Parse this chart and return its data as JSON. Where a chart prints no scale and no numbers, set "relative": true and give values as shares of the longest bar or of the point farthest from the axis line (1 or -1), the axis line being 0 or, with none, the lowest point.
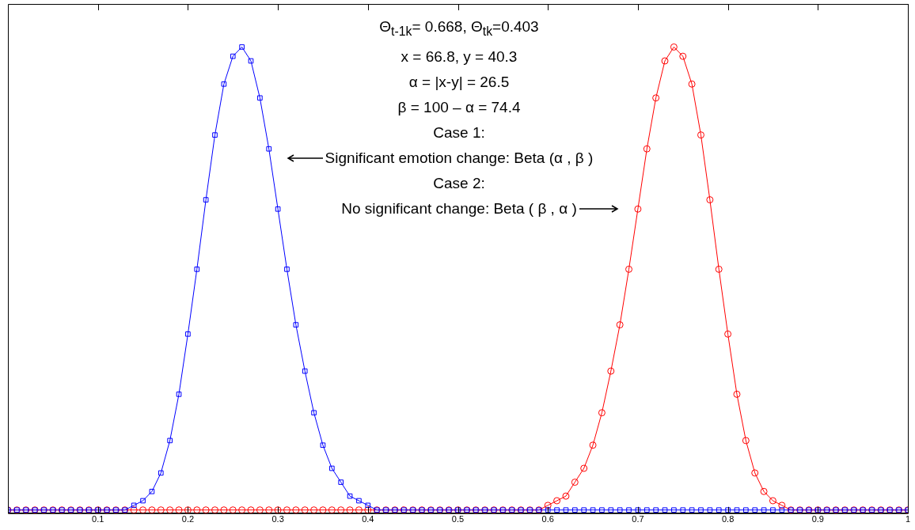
{
  "chart_data": {
    "type": "line",
    "relative": true,
    "grid": false,
    "legend": false,
    "annotations": [
      "Θ$_{t-1k}$= 0.668, Θ$_{tk}$=0.403",
      "x = 66.8, y = 40.3",
      "α = |x-y| = 26.5",
      "β  = 100 – α = 74.4",
      "Case 1:",
      "Significant emotion change: Beta (α , β )",
      "Case 2:",
      "No significant change: Beta ( β , α )"
    ],
    "xlim": [
      0,
      1
    ],
    "xticks": [
      0.1,
      0.2,
      0.3,
      0.4,
      0.5,
      0.6,
      0.7,
      0.8,
      0.9,
      1
    ],
    "x": [
      0,
      0.01,
      0.02,
      0.03,
      0.04,
      0.05,
      0.06,
      0.07,
      0.08,
      0.09,
      0.1,
      0.11,
      0.12,
      0.13,
      0.14,
      0.15,
      0.16,
      0.17,
      0.18,
      0.19,
      0.2,
      0.21,
      0.22,
      0.23,
      0.24,
      0.25,
      0.26,
      0.27,
      0.28,
      0.29,
      0.3,
      0.31,
      0.32,
      0.33,
      0.34,
      0.35,
      0.36,
      0.37,
      0.38,
      0.39,
      0.4,
      0.41,
      0.42,
      0.43,
      0.44,
      0.45,
      0.46,
      0.47,
      0.48,
      0.49,
      0.5,
      0.51,
      0.52,
      0.53,
      0.54,
      0.55,
      0.56,
      0.57,
      0.58,
      0.59,
      0.6,
      0.61,
      0.62,
      0.63,
      0.64,
      0.65,
      0.66,
      0.67,
      0.68,
      0.69,
      0.7,
      0.71,
      0.72,
      0.73,
      0.74,
      0.75,
      0.76,
      0.77,
      0.78,
      0.79,
      0.8,
      0.81,
      0.82,
      0.83,
      0.84,
      0.85,
      0.86,
      0.87,
      0.88,
      0.89,
      0.9,
      0.91,
      0.92,
      0.93,
      0.94,
      0.95,
      0.96,
      0.97,
      0.98,
      0.99,
      1
    ],
    "series": [
      {
        "color": "#0000ff",
        "marker": "square",
        "values": [
          0,
          0,
          0,
          0,
          0,
          0,
          0,
          0,
          0,
          0,
          0,
          0,
          0,
          0,
          0.01,
          0.02,
          0.04,
          0.08,
          0.15,
          0.25,
          0.38,
          0.52,
          0.67,
          0.81,
          0.92,
          0.98,
          1,
          0.97,
          0.89,
          0.78,
          0.65,
          0.52,
          0.4,
          0.3,
          0.21,
          0.14,
          0.09,
          0.06,
          0.03,
          0.02,
          0.01,
          0,
          0,
          0,
          0,
          0,
          0,
          0,
          0,
          0,
          0,
          0,
          0,
          0,
          0,
          0,
          0,
          0,
          0,
          0,
          0,
          0,
          0,
          0,
          0,
          0,
          0,
          0,
          0,
          0,
          0,
          0,
          0,
          0,
          0,
          0,
          0,
          0,
          0,
          0,
          0,
          0,
          0,
          0,
          0,
          0,
          0,
          0,
          0,
          0,
          0,
          0,
          0,
          0,
          0,
          0,
          0,
          0,
          0,
          0,
          0
        ]
      },
      {
        "color": "#ff0000",
        "marker": "circle",
        "values": [
          0,
          0,
          0,
          0,
          0,
          0,
          0,
          0,
          0,
          0,
          0,
          0,
          0,
          0,
          0,
          0,
          0,
          0,
          0,
          0,
          0,
          0,
          0,
          0,
          0,
          0,
          0,
          0,
          0,
          0,
          0,
          0,
          0,
          0,
          0,
          0,
          0,
          0,
          0,
          0,
          0,
          0,
          0,
          0,
          0,
          0,
          0,
          0,
          0,
          0,
          0,
          0,
          0,
          0,
          0,
          0,
          0,
          0,
          0,
          0,
          0.01,
          0.02,
          0.03,
          0.06,
          0.09,
          0.14,
          0.21,
          0.3,
          0.4,
          0.52,
          0.65,
          0.78,
          0.89,
          0.97,
          1,
          0.98,
          0.92,
          0.81,
          0.67,
          0.52,
          0.38,
          0.25,
          0.15,
          0.08,
          0.04,
          0.02,
          0.01,
          0,
          0,
          0,
          0,
          0,
          0,
          0,
          0,
          0,
          0,
          0,
          0,
          0,
          0
        ]
      }
    ]
  }
}
